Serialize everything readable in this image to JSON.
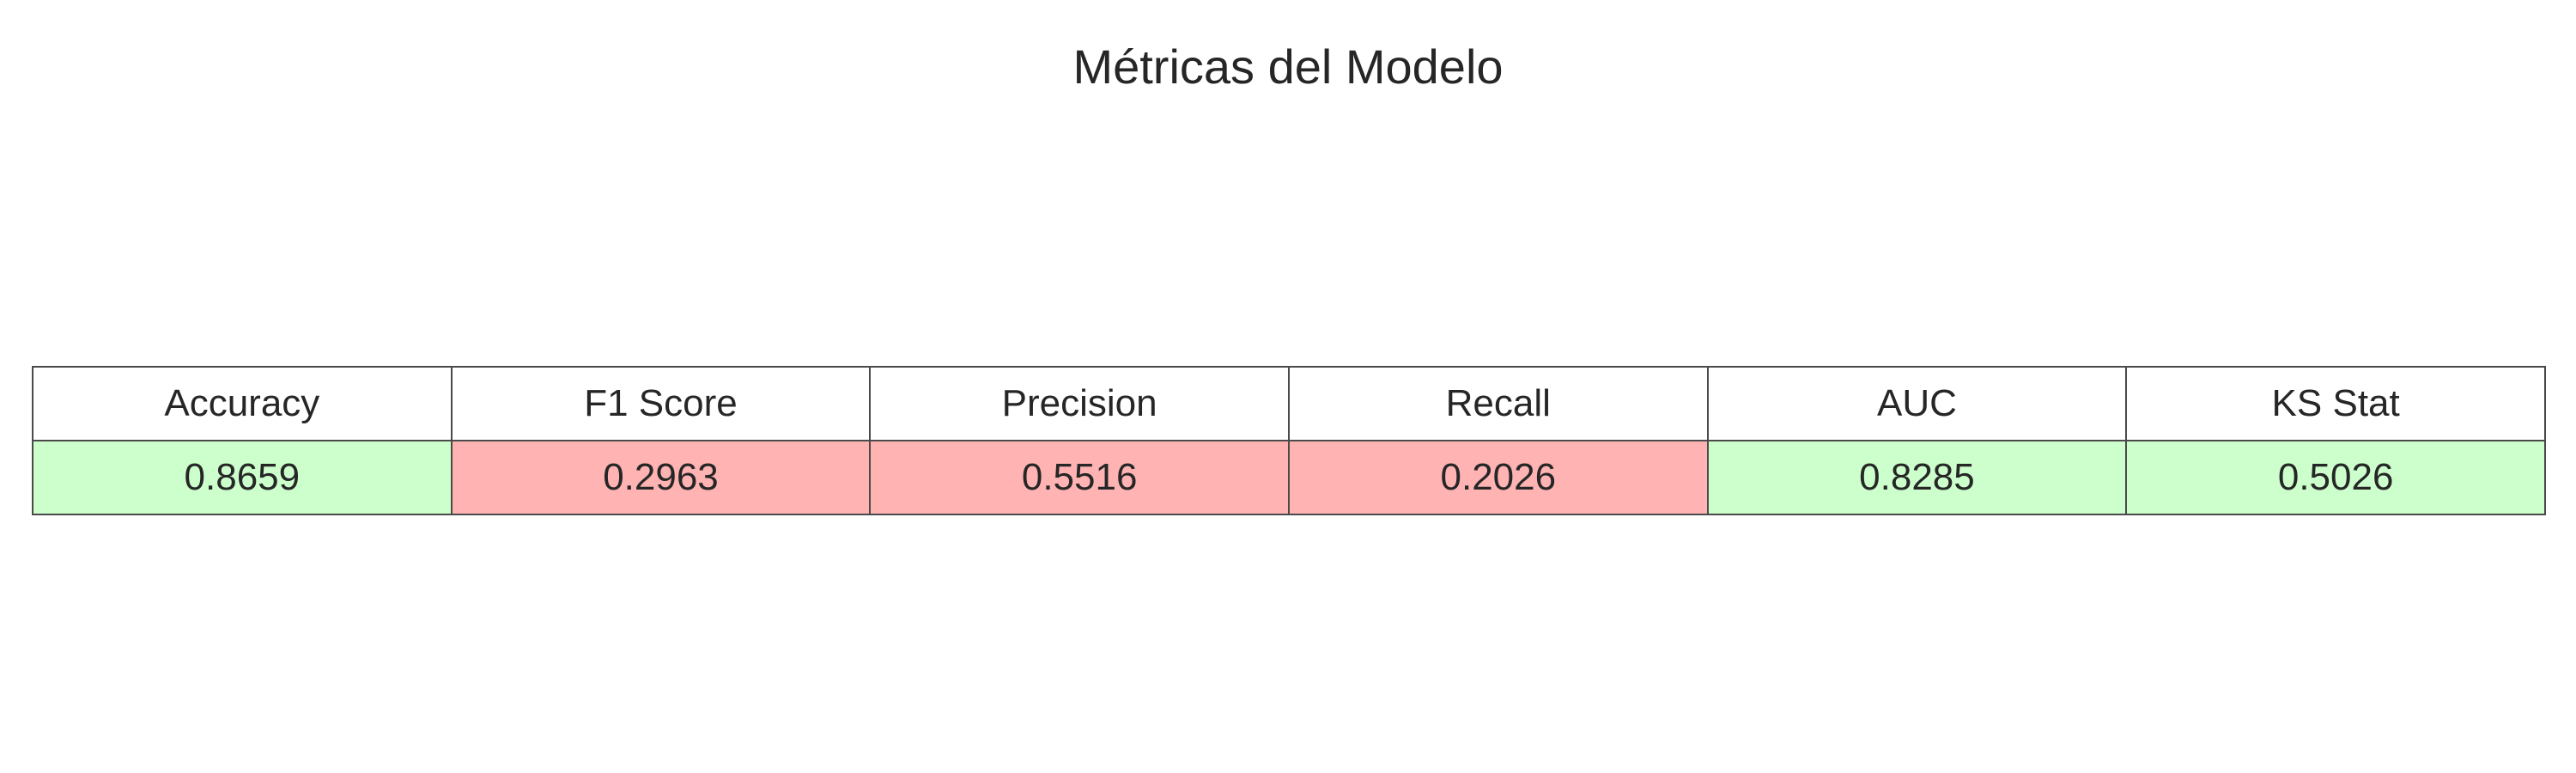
{
  "chart_data": {
    "type": "table",
    "title": "Métricas del Modelo",
    "columns": [
      "Accuracy",
      "F1 Score",
      "Precision",
      "Recall",
      "AUC",
      "KS Stat"
    ],
    "values": [
      "0.8659",
      "0.2963",
      "0.5516",
      "0.2026",
      "0.8285",
      "0.5026"
    ],
    "cell_colors": [
      "#ccffcc",
      "#ffb3b3",
      "#ffb3b3",
      "#ffb3b3",
      "#ccffcc",
      "#ccffcc"
    ]
  }
}
